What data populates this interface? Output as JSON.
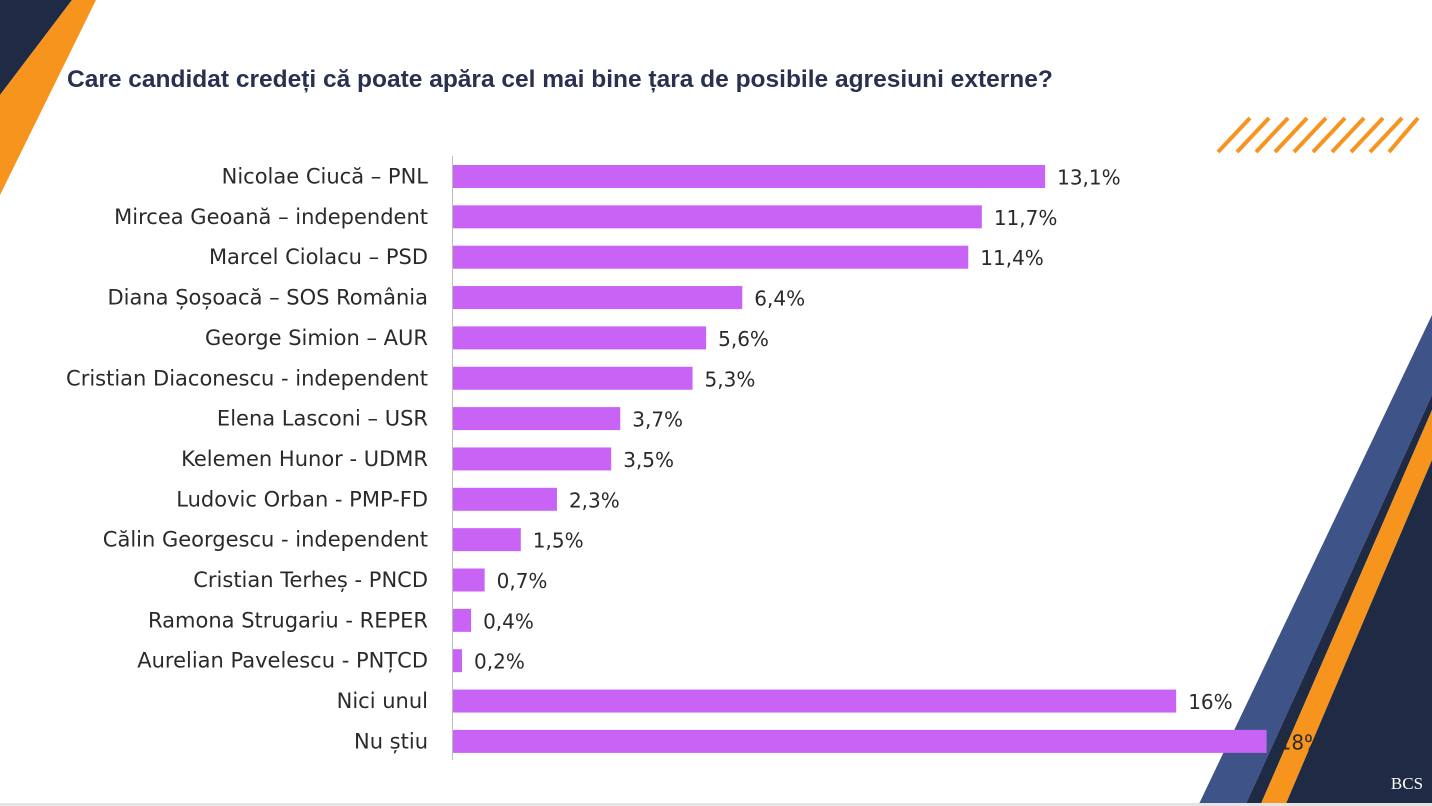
{
  "title": "Care candidat credeți că poate apăra cel mai bine țara de posibile agresiuni externe?",
  "logo_text": "BCS",
  "colors": {
    "bar": "#c963f5",
    "navy": "#1f2a44",
    "orange": "#f7941d",
    "steel": "#3e5488",
    "text": "#2a2a2a"
  },
  "chart_data": {
    "type": "bar",
    "orientation": "horizontal",
    "title": "Care candidat credeți că poate apăra cel mai bine țara de posibile agresiuni externe?",
    "xlabel": "",
    "ylabel": "",
    "xlim": [
      0,
      18
    ],
    "grid": false,
    "categories": [
      "Nicolae Ciucă – PNL",
      "Mircea Geoană – independent",
      "Marcel Ciolacu – PSD",
      "Diana Șoșoacă – SOS România",
      "George Simion – AUR",
      "Cristian Diaconescu - independent",
      "Elena Lasconi – USR",
      "Kelemen Hunor - UDMR",
      "Ludovic Orban - PMP-FD",
      "Călin Georgescu - independent",
      "Cristian Terheș - PNCD",
      "Ramona Strugariu - REPER",
      "Aurelian Pavelescu - PNȚCD",
      "Nici unul",
      "Nu știu"
    ],
    "values": [
      13.1,
      11.7,
      11.4,
      6.4,
      5.6,
      5.3,
      3.7,
      3.5,
      2.3,
      1.5,
      0.7,
      0.4,
      0.2,
      16,
      18
    ],
    "value_labels": [
      "13,1%",
      "11,7%",
      "11,4%",
      "6,4%",
      "5,6%",
      "5,3%",
      "3,7%",
      "3,5%",
      "2,3%",
      "1,5%",
      "0,7%",
      "0,4%",
      "0,2%",
      "16%",
      "18%"
    ]
  }
}
